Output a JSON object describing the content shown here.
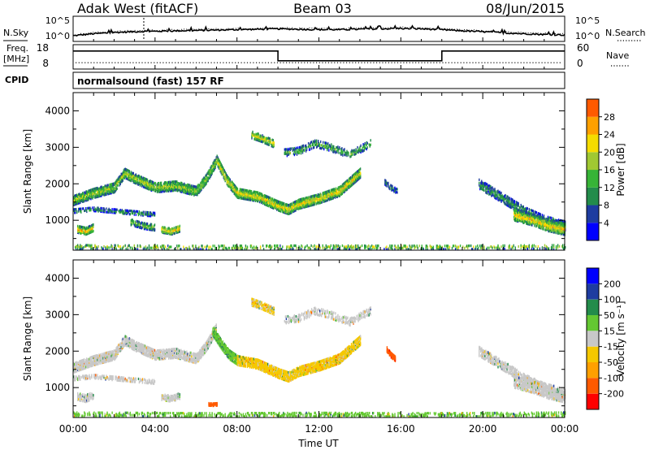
{
  "header": {
    "station": "Adak West (fitACF)",
    "beam": "Beam 03",
    "date": "08/Jun/2015"
  },
  "panels": {
    "nsky_label": "N.Sky",
    "nsky_ticks": [
      "10^5",
      "10^0"
    ],
    "nsearch_label": "N.Search",
    "nsearch_ticks": [
      "10^5",
      "10^0"
    ],
    "freq_label": "Freq.",
    "freq_unit": "[MHz]",
    "freq_ticks": [
      "18",
      "8"
    ],
    "nave_label": "Nave",
    "nave_ticks": [
      "60",
      "0"
    ],
    "cpid_label": "CPID",
    "cpid_text": "normalsound (fast) 157 RF"
  },
  "colors": {
    "power": [
      "#0000ff",
      "#1e3ca0",
      "#238c4b",
      "#37b437",
      "#a0c832",
      "#f5dc00",
      "#ffa000",
      "#ff5a00",
      "#ff0000"
    ],
    "velocity": [
      "#ff0000",
      "#ff5a00",
      "#ffa000",
      "#f5c800",
      "#c8c8c8",
      "#64c832",
      "#238c4b",
      "#1e3ca0",
      "#0000ff"
    ]
  },
  "chart_data": [
    {
      "type": "line",
      "name": "nsky-nsearch",
      "x_hours": [
        0,
        1,
        2,
        3,
        4,
        5,
        6,
        7,
        8,
        9,
        10,
        11,
        12,
        13,
        14,
        15,
        16,
        17,
        18,
        19,
        20,
        21,
        22,
        23,
        24
      ],
      "nsky_log10": [
        0.8,
        1.3,
        1.6,
        1.8,
        1.9,
        2.0,
        2.1,
        2.2,
        2.3,
        2.4,
        2.5,
        2.4,
        2.3,
        2.3,
        2.4,
        2.5,
        2.6,
        2.5,
        2.3,
        2.0,
        1.8,
        1.5,
        1.3,
        1.1,
        1.0
      ],
      "ylim_log10": [
        0,
        5
      ]
    },
    {
      "type": "line",
      "name": "freq-nave",
      "freq_segments": [
        {
          "x": [
            0,
            10
          ],
          "value": 16
        },
        {
          "x": [
            10,
            18
          ],
          "value": 11
        },
        {
          "x": [
            18,
            24
          ],
          "value": 16
        }
      ],
      "freq_ylim": [
        8,
        18
      ],
      "nave_value": 12,
      "nave_ylim": [
        0,
        60
      ]
    },
    {
      "type": "heatmap",
      "name": "power",
      "xlabel": "",
      "ylabel": "Slant Range [km]",
      "xlim": [
        0,
        24
      ],
      "ylim": [
        180,
        4500
      ],
      "yticks": [
        "1000",
        "2000",
        "3000",
        "4000"
      ],
      "colorbar_label": "Power [dB]",
      "colorbar_ticks": [
        "4",
        "8",
        "12",
        "16",
        "20",
        "24",
        "28"
      ],
      "colorbar_range": [
        0,
        32
      ],
      "bands": [
        {
          "x": [
            0.0,
            1.0,
            2.0,
            2.5,
            3.0,
            4.0,
            5.0,
            6.0,
            6.5,
            7.0
          ],
          "y": [
            1550,
            1750,
            1900,
            2300,
            2150,
            1900,
            1950,
            1800,
            2150,
            2650
          ],
          "width": 260,
          "density": 0.75,
          "level": 14
        },
        {
          "x": [
            7.0,
            7.5,
            8.0,
            9.0,
            10.0,
            10.5,
            11.0,
            12.0,
            13.0,
            14.0
          ],
          "y": [
            2650,
            2100,
            1750,
            1650,
            1400,
            1300,
            1450,
            1600,
            1800,
            2300
          ],
          "width": 260,
          "density": 0.8,
          "level": 17
        },
        {
          "x": [
            0.0,
            1.0,
            2.0,
            3.0,
            4.0
          ],
          "y": [
            1250,
            1300,
            1250,
            1200,
            1150
          ],
          "width": 90,
          "density": 0.45,
          "level": 10
        },
        {
          "x": [
            0.2,
            0.6,
            1.0
          ],
          "y": [
            750,
            700,
            800
          ],
          "width": 180,
          "density": 0.75,
          "level": 19
        },
        {
          "x": [
            2.8,
            3.4,
            4.0
          ],
          "y": [
            950,
            850,
            800
          ],
          "width": 160,
          "density": 0.6,
          "level": 12
        },
        {
          "x": [
            4.3,
            4.8,
            5.2
          ],
          "y": [
            750,
            700,
            780
          ],
          "width": 170,
          "density": 0.75,
          "level": 19
        },
        {
          "x": [
            8.7,
            9.2,
            9.8
          ],
          "y": [
            3350,
            3250,
            3100
          ],
          "width": 200,
          "density": 0.6,
          "level": 16
        },
        {
          "x": [
            10.3,
            11.0,
            11.8,
            12.5,
            13.5,
            14.5
          ],
          "y": [
            2850,
            2900,
            3100,
            3000,
            2800,
            3100
          ],
          "width": 180,
          "density": 0.35,
          "level": 11
        },
        {
          "x": [
            15.2,
            15.5,
            15.8
          ],
          "y": [
            2050,
            1900,
            1800
          ],
          "width": 140,
          "density": 0.6,
          "level": 8
        },
        {
          "x": [
            19.8,
            21.0,
            22.0,
            23.0,
            24.0
          ],
          "y": [
            2000,
            1600,
            1250,
            1000,
            850
          ],
          "width": 260,
          "density": 0.5,
          "level": 9
        },
        {
          "x": [
            21.5,
            22.5,
            23.2,
            24.0
          ],
          "y": [
            1150,
            1000,
            850,
            750
          ],
          "width": 300,
          "density": 0.7,
          "level": 18
        },
        {
          "x": [
            0.0,
            6.0,
            12.0,
            18.0,
            24.0
          ],
          "y": [
            280,
            260,
            270,
            260,
            280
          ],
          "width": 110,
          "density": 0.25,
          "level": 15
        }
      ]
    },
    {
      "type": "heatmap",
      "name": "velocity",
      "xlabel": "Time UT",
      "ylabel": "Slant Range [km]",
      "xlim": [
        0,
        24
      ],
      "ylim": [
        180,
        4500
      ],
      "xticks": [
        "00:00",
        "04:00",
        "08:00",
        "12:00",
        "16:00",
        "20:00",
        "00:00"
      ],
      "yticks": [
        "1000",
        "2000",
        "3000",
        "4000"
      ],
      "colorbar_label": "Velocity [m s⁻¹]",
      "colorbar_ticks": [
        "-200",
        "-100",
        "-50",
        "-15",
        "15",
        "50",
        "100",
        "200"
      ],
      "bands": [
        {
          "x": [
            0.0,
            1.0,
            2.0,
            2.5,
            3.0,
            4.0,
            5.0,
            6.0,
            6.5,
            7.0
          ],
          "y": [
            1550,
            1750,
            1900,
            2300,
            2150,
            1900,
            1950,
            1800,
            2150,
            2650
          ],
          "width": 260,
          "density": 0.75,
          "vel": 0
        },
        {
          "x": [
            6.8,
            7.2,
            7.6,
            8.0
          ],
          "y": [
            2550,
            2200,
            1900,
            1750
          ],
          "width": 240,
          "density": 0.8,
          "vel": 40
        },
        {
          "x": [
            8.0,
            9.0,
            10.0,
            10.5,
            11.0,
            12.0,
            13.0,
            14.0
          ],
          "y": [
            1750,
            1650,
            1400,
            1300,
            1450,
            1600,
            1800,
            2300
          ],
          "width": 260,
          "density": 0.8,
          "vel": -25
        },
        {
          "x": [
            0.0,
            1.0,
            2.0,
            3.0,
            4.0
          ],
          "y": [
            1250,
            1300,
            1250,
            1200,
            1150
          ],
          "width": 90,
          "density": 0.45,
          "vel": 0
        },
        {
          "x": [
            0.2,
            0.6,
            1.0
          ],
          "y": [
            750,
            700,
            800
          ],
          "width": 180,
          "density": 0.6,
          "vel": 0
        },
        {
          "x": [
            4.3,
            4.8,
            5.2
          ],
          "y": [
            750,
            700,
            780
          ],
          "width": 170,
          "density": 0.6,
          "vel": 0
        },
        {
          "x": [
            8.7,
            9.2,
            9.8
          ],
          "y": [
            3350,
            3250,
            3100
          ],
          "width": 200,
          "density": 0.6,
          "vel": -20
        },
        {
          "x": [
            10.3,
            11.0,
            11.8,
            12.5,
            13.5,
            14.5
          ],
          "y": [
            2850,
            2900,
            3100,
            3000,
            2800,
            3100
          ],
          "width": 180,
          "density": 0.35,
          "vel": 0
        },
        {
          "x": [
            15.3,
            15.5,
            15.7
          ],
          "y": [
            2050,
            1900,
            1800
          ],
          "width": 140,
          "density": 0.7,
          "vel": -180
        },
        {
          "x": [
            6.6,
            6.8,
            7.0
          ],
          "y": [
            540,
            530,
            540
          ],
          "width": 60,
          "density": 0.8,
          "vel": -180
        },
        {
          "x": [
            19.8,
            21.0,
            22.0,
            23.0,
            24.0
          ],
          "y": [
            2000,
            1600,
            1250,
            1000,
            850
          ],
          "width": 260,
          "density": 0.5,
          "vel": 0
        },
        {
          "x": [
            21.5,
            22.5,
            23.2,
            24.0
          ],
          "y": [
            1150,
            1000,
            850,
            750
          ],
          "width": 300,
          "density": 0.6,
          "vel": 0
        },
        {
          "x": [
            0.0,
            6.0,
            12.0,
            18.0,
            24.0
          ],
          "y": [
            280,
            260,
            270,
            260,
            280
          ],
          "width": 110,
          "density": 0.3,
          "vel": 30
        }
      ]
    }
  ]
}
